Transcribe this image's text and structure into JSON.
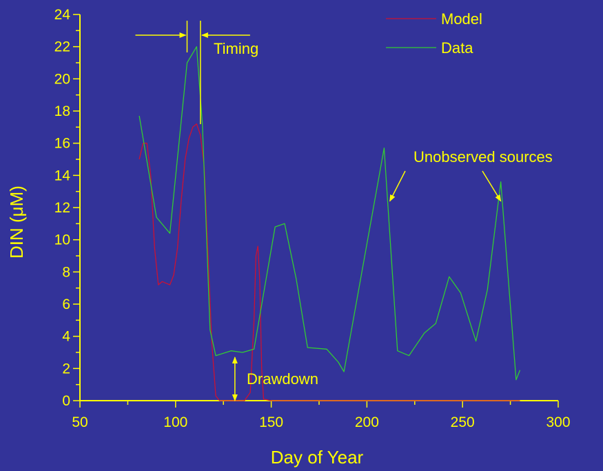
{
  "chart_data": {
    "type": "line",
    "title": "",
    "xlabel": "Day of Year",
    "ylabel": "DIN (μM)",
    "xlim": [
      50,
      300
    ],
    "ylim": [
      0,
      24
    ],
    "x_ticks": [
      50,
      100,
      150,
      200,
      250,
      300
    ],
    "y_ticks": [
      0,
      2,
      4,
      6,
      8,
      10,
      12,
      14,
      16,
      18,
      20,
      22,
      24
    ],
    "grid": false,
    "legend": "top-right",
    "series": [
      {
        "name": "Model",
        "color": "#cc1133",
        "x": [
          81,
          83,
          85,
          87,
          89,
          91,
          93,
          95,
          97,
          99,
          101,
          103,
          105,
          107,
          109,
          111,
          113,
          115,
          117,
          119,
          121,
          123,
          125,
          130,
          136,
          139,
          141,
          142,
          143,
          144,
          145,
          146,
          150,
          170,
          200,
          240,
          270,
          280
        ],
        "values": [
          15.0,
          16.0,
          16.0,
          14.0,
          9.5,
          7.2,
          7.4,
          7.3,
          7.2,
          7.8,
          9.5,
          12.5,
          15.0,
          16.3,
          17.0,
          17.2,
          16.5,
          14.5,
          9.0,
          3.5,
          0.3,
          0.0,
          0.0,
          0.0,
          0.0,
          0.5,
          5.0,
          9.0,
          9.6,
          7.5,
          2.0,
          0.1,
          0.0,
          0.0,
          0.0,
          0.0,
          0.0,
          0.0
        ]
      },
      {
        "name": "Data",
        "color": "#33cc33",
        "x": [
          81,
          90,
          97,
          106,
          111,
          114,
          118,
          121,
          129,
          135,
          141,
          152,
          157,
          163,
          169,
          179,
          185,
          188,
          209,
          216,
          222,
          230,
          236,
          243,
          249,
          257,
          263,
          270,
          278,
          280
        ],
        "values": [
          17.7,
          11.4,
          10.4,
          21.0,
          22.0,
          17.2,
          4.4,
          2.8,
          3.1,
          3.0,
          3.2,
          10.8,
          11.0,
          7.6,
          3.3,
          3.2,
          2.4,
          1.8,
          15.7,
          3.1,
          2.8,
          4.2,
          4.8,
          7.7,
          6.7,
          3.7,
          6.9,
          13.6,
          1.3,
          1.9
        ]
      }
    ],
    "annotations": {
      "timing": {
        "label": "Timing",
        "x_left": 106,
        "x_right": 113
      },
      "drawdown": {
        "label": "Drawdown",
        "x": 131,
        "y_low": 0,
        "y_high": 2.7
      },
      "unobserved": {
        "label": "Unobserved sources",
        "targets": [
          [
            212,
            12.4
          ],
          [
            270,
            12.4
          ]
        ]
      }
    }
  }
}
